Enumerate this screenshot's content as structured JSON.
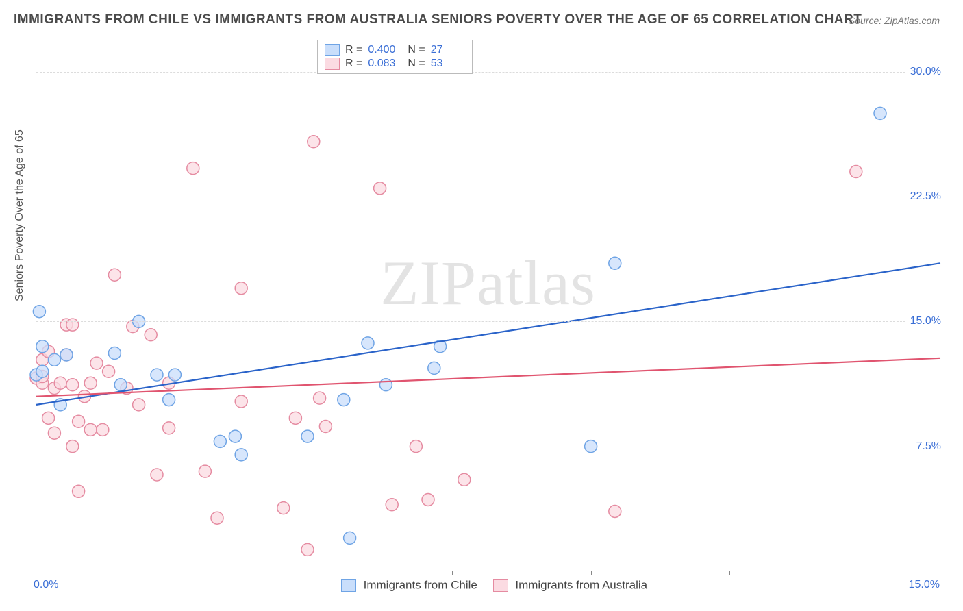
{
  "title": "IMMIGRANTS FROM CHILE VS IMMIGRANTS FROM AUSTRALIA SENIORS POVERTY OVER THE AGE OF 65 CORRELATION CHART",
  "source": "Source: ZipAtlas.com",
  "ylabel": "Seniors Poverty Over the Age of 65",
  "watermark": "ZIPatlas",
  "chart": {
    "type": "scatter",
    "xlim": [
      0,
      15
    ],
    "ylim": [
      0,
      32
    ],
    "yticks": [
      7.5,
      15.0,
      22.5,
      30.0
    ],
    "ytick_labels": [
      "7.5%",
      "15.0%",
      "22.5%",
      "30.0%"
    ],
    "xtick_left": "0.0%",
    "xtick_right": "15.0%",
    "xtick_marks": [
      2.3,
      4.6,
      6.9,
      9.2,
      11.5
    ],
    "background_color": "#ffffff",
    "grid_color": "#dcdcdc",
    "marker_radius": 9,
    "marker_stroke_width": 1.5,
    "line_width": 2.2
  },
  "series": [
    {
      "name": "Immigrants from Chile",
      "color_fill": "#c9defb",
      "color_stroke": "#6fa4e5",
      "line_color": "#2a63c9",
      "R": "0.400",
      "N": "27",
      "trend": {
        "x1": 0,
        "y1": 10.0,
        "x2": 15,
        "y2": 18.5
      },
      "points": [
        [
          0.0,
          11.8
        ],
        [
          0.05,
          15.6
        ],
        [
          0.1,
          13.5
        ],
        [
          0.1,
          12.0
        ],
        [
          0.3,
          12.7
        ],
        [
          0.4,
          10.0
        ],
        [
          0.5,
          13.0
        ],
        [
          1.3,
          13.1
        ],
        [
          1.7,
          15.0
        ],
        [
          1.4,
          11.2
        ],
        [
          2.0,
          11.8
        ],
        [
          2.2,
          10.3
        ],
        [
          2.3,
          11.8
        ],
        [
          3.05,
          7.8
        ],
        [
          3.3,
          8.1
        ],
        [
          3.4,
          7.0
        ],
        [
          4.5,
          8.1
        ],
        [
          5.1,
          10.3
        ],
        [
          5.2,
          2.0
        ],
        [
          5.5,
          13.7
        ],
        [
          5.8,
          11.2
        ],
        [
          6.6,
          12.2
        ],
        [
          6.7,
          13.5
        ],
        [
          9.2,
          7.5
        ],
        [
          9.6,
          18.5
        ],
        [
          14.0,
          27.5
        ]
      ]
    },
    {
      "name": "Immigrants from Australia",
      "color_fill": "#fbdbe2",
      "color_stroke": "#e58ba1",
      "line_color": "#e0546f",
      "R": "0.083",
      "N": "53",
      "trend": {
        "x1": 0,
        "y1": 10.5,
        "x2": 15,
        "y2": 12.8
      },
      "points": [
        [
          0.0,
          11.6
        ],
        [
          0.1,
          11.3
        ],
        [
          0.1,
          11.7
        ],
        [
          0.1,
          12.7
        ],
        [
          0.2,
          9.2
        ],
        [
          0.2,
          13.2
        ],
        [
          0.3,
          8.3
        ],
        [
          0.3,
          11.0
        ],
        [
          0.4,
          11.3
        ],
        [
          0.5,
          13.0
        ],
        [
          0.5,
          14.8
        ],
        [
          0.6,
          7.5
        ],
        [
          0.6,
          11.2
        ],
        [
          0.6,
          14.8
        ],
        [
          0.7,
          4.8
        ],
        [
          0.7,
          9.0
        ],
        [
          0.8,
          10.5
        ],
        [
          0.9,
          8.5
        ],
        [
          0.9,
          11.3
        ],
        [
          1.0,
          12.5
        ],
        [
          1.1,
          8.5
        ],
        [
          1.2,
          12.0
        ],
        [
          1.3,
          17.8
        ],
        [
          1.5,
          11.0
        ],
        [
          1.6,
          14.7
        ],
        [
          1.7,
          10.0
        ],
        [
          1.9,
          14.2
        ],
        [
          2.0,
          5.8
        ],
        [
          2.2,
          8.6
        ],
        [
          2.2,
          11.3
        ],
        [
          2.6,
          24.2
        ],
        [
          2.8,
          6.0
        ],
        [
          3.0,
          3.2
        ],
        [
          3.4,
          10.2
        ],
        [
          3.4,
          17.0
        ],
        [
          4.1,
          3.8
        ],
        [
          4.3,
          9.2
        ],
        [
          4.5,
          1.3
        ],
        [
          4.6,
          25.8
        ],
        [
          4.7,
          10.4
        ],
        [
          4.8,
          8.7
        ],
        [
          5.7,
          23.0
        ],
        [
          5.9,
          4.0
        ],
        [
          6.3,
          7.5
        ],
        [
          6.5,
          4.3
        ],
        [
          7.1,
          5.5
        ],
        [
          9.6,
          3.6
        ],
        [
          13.6,
          24.0
        ]
      ]
    }
  ],
  "legend_bottom": {
    "series1": "Immigrants from Chile",
    "series2": "Immigrants from Australia"
  }
}
